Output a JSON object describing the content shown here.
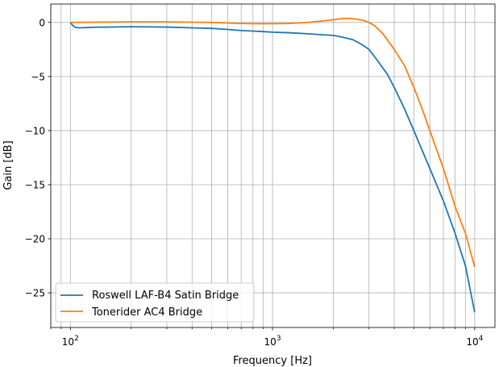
{
  "chart_data": {
    "type": "line",
    "xscale": "log",
    "xlabel": "Frequency [Hz]",
    "ylabel": "Gain [dB]",
    "xlim": [
      80,
      12600
    ],
    "ylim": [
      -28.2,
      1.7
    ],
    "grid": "both (major and minor x)",
    "legend_position": "lower-left",
    "x_major_ticks": [
      {
        "value": 100,
        "mantissa": "10",
        "exponent": "2"
      },
      {
        "value": 1000,
        "mantissa": "10",
        "exponent": "3"
      },
      {
        "value": 10000,
        "mantissa": "10",
        "exponent": "4"
      }
    ],
    "y_ticks": [
      {
        "value": 0,
        "label": "0"
      },
      {
        "value": -5,
        "label": "−5"
      },
      {
        "value": -10,
        "label": "−10"
      },
      {
        "value": -15,
        "label": "−15"
      },
      {
        "value": -20,
        "label": "−20"
      },
      {
        "value": -25,
        "label": "−25"
      }
    ],
    "series": [
      {
        "name": "Roswell LAF-B4 Satin Bridge",
        "color": "#1f77b4",
        "points": [
          [
            100,
            0.0
          ],
          [
            103,
            -0.3
          ],
          [
            106,
            -0.45
          ],
          [
            110,
            -0.5
          ],
          [
            130,
            -0.45
          ],
          [
            200,
            -0.4
          ],
          [
            300,
            -0.43
          ],
          [
            400,
            -0.5
          ],
          [
            500,
            -0.55
          ],
          [
            600,
            -0.65
          ],
          [
            700,
            -0.75
          ],
          [
            800,
            -0.8
          ],
          [
            900,
            -0.85
          ],
          [
            1000,
            -0.9
          ],
          [
            1200,
            -0.95
          ],
          [
            1500,
            -1.05
          ],
          [
            1800,
            -1.15
          ],
          [
            2000,
            -1.2
          ],
          [
            2200,
            -1.35
          ],
          [
            2500,
            -1.6
          ],
          [
            2800,
            -2.1
          ],
          [
            3000,
            -2.5
          ],
          [
            3300,
            -3.5
          ],
          [
            3700,
            -4.8
          ],
          [
            4000,
            -6.0
          ],
          [
            4500,
            -8.0
          ],
          [
            5000,
            -10.0
          ],
          [
            6000,
            -13.5
          ],
          [
            7000,
            -16.5
          ],
          [
            8000,
            -19.5
          ],
          [
            9000,
            -22.5
          ],
          [
            10000,
            -26.8
          ]
        ]
      },
      {
        "name": "Tonerider AC4 Bridge",
        "color": "#ff7f0e",
        "points": [
          [
            100,
            0.0
          ],
          [
            130,
            0.02
          ],
          [
            200,
            0.05
          ],
          [
            300,
            0.05
          ],
          [
            400,
            0.02
          ],
          [
            500,
            0.0
          ],
          [
            600,
            -0.05
          ],
          [
            700,
            -0.1
          ],
          [
            800,
            -0.12
          ],
          [
            900,
            -0.12
          ],
          [
            1000,
            -0.12
          ],
          [
            1200,
            -0.1
          ],
          [
            1500,
            0.0
          ],
          [
            1800,
            0.15
          ],
          [
            2000,
            0.25
          ],
          [
            2200,
            0.35
          ],
          [
            2400,
            0.38
          ],
          [
            2600,
            0.3
          ],
          [
            2800,
            0.2
          ],
          [
            3000,
            0.0
          ],
          [
            3200,
            -0.3
          ],
          [
            3500,
            -1.0
          ],
          [
            4000,
            -2.5
          ],
          [
            4500,
            -4.0
          ],
          [
            5000,
            -6.0
          ],
          [
            5500,
            -8.0
          ],
          [
            6000,
            -10.0
          ],
          [
            7000,
            -13.5
          ],
          [
            8000,
            -17.0
          ],
          [
            9000,
            -19.5
          ],
          [
            10000,
            -22.6
          ]
        ]
      }
    ]
  }
}
